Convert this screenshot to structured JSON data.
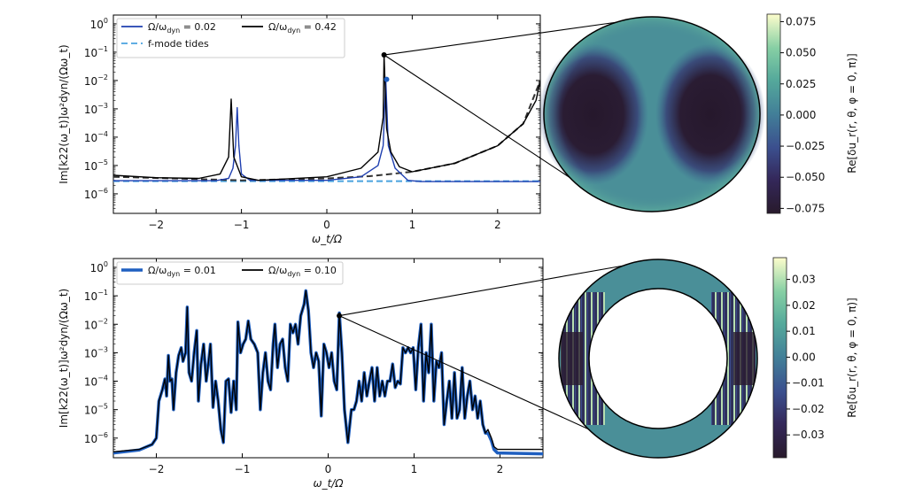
{
  "chart_data": [
    {
      "type": "line",
      "xlabel": "ω_t/Ω",
      "ylabel": "Im[k22(ω_t)]ω²dyn/(Ωω_t)",
      "xlim": [
        -2.5,
        2.5
      ],
      "ylim_log10": [
        -6.69,
        0.31
      ],
      "yscale": "log",
      "xticks": [
        "−2",
        "−1",
        "0",
        "1",
        "2"
      ],
      "xtick_values": [
        -2,
        -1,
        0,
        1,
        2
      ],
      "ytick_exponents": [
        "0",
        "−1",
        "−2",
        "−3",
        "−4",
        "−5",
        "−6"
      ],
      "legend_position": "top-left",
      "series": [
        {
          "name": "Ω/ω_dyn = 0.02",
          "legend_main": "Ω/ω",
          "legend_sub": "dyn",
          "legend_val": " = 0.02",
          "color": "#1f3fb0",
          "style": "solid",
          "points": [
            [
              -2.5,
              2.9e-06
            ],
            [
              -1.3,
              2.9e-06
            ],
            [
              -1.15,
              3.5e-06
            ],
            [
              -1.1,
              8e-06
            ],
            [
              -1.07,
              5e-05
            ],
            [
              -1.05,
              0.0011
            ],
            [
              -1.03,
              5e-05
            ],
            [
              -1.0,
              5e-06
            ],
            [
              -0.9,
              3e-06
            ],
            [
              0,
              3e-06
            ],
            [
              0.4,
              4e-06
            ],
            [
              0.6,
              1e-05
            ],
            [
              0.66,
              5e-05
            ],
            [
              0.69,
              0.011
            ],
            [
              0.72,
              5e-05
            ],
            [
              0.8,
              8e-06
            ],
            [
              0.95,
              3e-06
            ],
            [
              1.1,
              2.7e-06
            ],
            [
              2.5,
              2.7e-06
            ]
          ]
        },
        {
          "name": "Ω/ω_dyn = 0.42",
          "legend_main": "Ω/ω",
          "legend_sub": "dyn",
          "legend_val": " = 0.42",
          "color": "#000000",
          "style": "solid",
          "points": [
            [
              -2.5,
              4.5e-06
            ],
            [
              -2,
              3.7e-06
            ],
            [
              -1.5,
              3.5e-06
            ],
            [
              -1.25,
              5e-06
            ],
            [
              -1.15,
              2e-05
            ],
            [
              -1.12,
              0.0022
            ],
            [
              -1.09,
              2e-05
            ],
            [
              -1.0,
              4e-06
            ],
            [
              -0.8,
              3e-06
            ],
            [
              0,
              4e-06
            ],
            [
              0.4,
              8e-06
            ],
            [
              0.6,
              3e-05
            ],
            [
              0.66,
              0.0005
            ],
            [
              0.67,
              0.08
            ],
            [
              0.7,
              0.0002
            ],
            [
              0.75,
              3e-05
            ],
            [
              0.85,
              9e-06
            ],
            [
              1.0,
              6e-06
            ],
            [
              1.5,
              1.2e-05
            ],
            [
              2.0,
              5e-05
            ],
            [
              2.3,
              0.0003
            ],
            [
              2.45,
              0.002
            ],
            [
              2.5,
              0.01
            ]
          ]
        },
        {
          "name": "f-mode tides",
          "color": "#4aa3df",
          "style": "dashed",
          "points": [
            [
              -2.5,
              2.8e-06
            ],
            [
              2.5,
              2.8e-06
            ]
          ]
        },
        {
          "color": "#333333",
          "style": "dashed",
          "points": [
            [
              -2.5,
              4e-06
            ],
            [
              -1.5,
              3.3e-06
            ],
            [
              -1,
              3e-06
            ],
            [
              0,
              3.5e-06
            ],
            [
              0.5,
              4.2e-06
            ],
            [
              1,
              6e-06
            ],
            [
              1.5,
              1.2e-05
            ],
            [
              2,
              5e-05
            ],
            [
              2.3,
              0.0003
            ],
            [
              2.5,
              0.01
            ]
          ]
        }
      ],
      "markers": [
        {
          "x": 0.67,
          "y": 0.08,
          "color": "#000000"
        },
        {
          "x": 0.7,
          "y": 0.011,
          "color": "#1f5fc0"
        }
      ]
    },
    {
      "type": "line",
      "xlabel": "ω_t/Ω",
      "ylabel": "Im[k22(ω_t)]ω²dyn/(Ωω_t)",
      "xlim": [
        -2.5,
        2.5
      ],
      "ylim_log10": [
        -6.69,
        0.31
      ],
      "yscale": "log",
      "xticks": [
        "−2",
        "−1",
        "0",
        "1",
        "2"
      ],
      "xtick_values": [
        -2,
        -1,
        0,
        1,
        2
      ],
      "ytick_exponents": [
        "0",
        "−1",
        "−2",
        "−3",
        "−4",
        "−5",
        "−6"
      ],
      "legend_position": "top-left",
      "x": [
        -2.5,
        -2.2,
        -2.05,
        -2.0,
        -1.97,
        -1.93,
        -1.9,
        -1.88,
        -1.86,
        -1.84,
        -1.82,
        -1.8,
        -1.77,
        -1.74,
        -1.71,
        -1.69,
        -1.66,
        -1.64,
        -1.62,
        -1.59,
        -1.56,
        -1.53,
        -1.51,
        -1.48,
        -1.45,
        -1.42,
        -1.4,
        -1.37,
        -1.34,
        -1.31,
        -1.28,
        -1.25,
        -1.22,
        -1.19,
        -1.16,
        -1.13,
        -1.1,
        -1.07,
        -1.05,
        -1.02,
        -0.99,
        -0.96,
        -0.93,
        -0.9,
        -0.86,
        -0.82,
        -0.79,
        -0.76,
        -0.73,
        -0.7,
        -0.67,
        -0.64,
        -0.62,
        -0.59,
        -0.56,
        -0.53,
        -0.5,
        -0.47,
        -0.44,
        -0.41,
        -0.38,
        -0.35,
        -0.32,
        -0.28,
        -0.26,
        -0.23,
        -0.2,
        -0.17,
        -0.14,
        -0.11,
        -0.08,
        -0.05,
        -0.02,
        0.01,
        0.04,
        0.07,
        0.1,
        0.13,
        0.16,
        0.19,
        0.23,
        0.27,
        0.3,
        0.33,
        0.36,
        0.39,
        0.42,
        0.45,
        0.48,
        0.51,
        0.54,
        0.57,
        0.6,
        0.63,
        0.66,
        0.69,
        0.72,
        0.75,
        0.78,
        0.81,
        0.84,
        0.87,
        0.9,
        0.93,
        0.96,
        0.99,
        1.02,
        1.05,
        1.08,
        1.11,
        1.14,
        1.17,
        1.2,
        1.23,
        1.26,
        1.29,
        1.32,
        1.35,
        1.38,
        1.41,
        1.44,
        1.47,
        1.5,
        1.53,
        1.56,
        1.59,
        1.62,
        1.65,
        1.68,
        1.71,
        1.74,
        1.77,
        1.8,
        1.83,
        1.86,
        1.9,
        1.93,
        1.97,
        2.5
      ],
      "series": [
        {
          "name": "Ω/ω_dyn = 0.01",
          "legend_main": "Ω/ω",
          "legend_sub": "dyn",
          "legend_val": " = 0.01",
          "color": "#1f5fc0",
          "style": "solid-thick",
          "y": [
            3e-07,
            3.8e-07,
            6e-07,
            1e-06,
            2e-05,
            5e-05,
            0.00012,
            3e-05,
            0.0008,
            0.0001,
            0.00012,
            1e-05,
            0.0002,
            0.0008,
            0.0015,
            0.0005,
            0.001,
            0.04,
            0.0002,
            0.0001,
            0.001,
            0.006,
            2e-05,
            0.0004,
            0.002,
            0.0001,
            0.0003,
            0.002,
            1.2e-05,
            0.0001,
            2e-05,
            2e-06,
            7e-07,
            0.0001,
            0.00012,
            8e-06,
            0.0001,
            1e-05,
            0.012,
            0.001,
            0.002,
            0.003,
            0.013,
            0.003,
            0.002,
            0.001,
            1e-05,
            0.0002,
            0.001,
            0.0001,
            5e-05,
            0.002,
            0.01,
            0.0003,
            0.002,
            0.003,
            0.0003,
            0.0001,
            0.01,
            0.005,
            0.01,
            0.002,
            0.02,
            0.05,
            0.15,
            0.03,
            0.001,
            0.0003,
            0.001,
            0.0005,
            6e-06,
            0.002,
            0.001,
            0.0003,
            0.001,
            0.0001,
            5e-05,
            0.025,
            0.001,
            1e-05,
            7e-07,
            1e-05,
            1e-05,
            2e-05,
            0.0001,
            2e-05,
            0.0002,
            3e-05,
            0.0001,
            0.0003,
            2e-05,
            0.0003,
            3e-05,
            0.0001,
            3e-05,
            0.0001,
            0.0001,
            0.0004,
            6e-05,
            0.0001,
            8e-05,
            0.0015,
            0.001,
            0.0015,
            0.001,
            0.0015,
            5e-05,
            0.0015,
            0.01,
            2e-05,
            0.001,
            0.0002,
            0.01,
            2e-05,
            0.0005,
            0.0003,
            0.001,
            3e-06,
            2e-05,
            0.0001,
            5e-06,
            0.0002,
            5e-06,
            1e-05,
            0.0003,
            5e-06,
            3e-05,
            0.0001,
            1e-05,
            3e-05,
            5e-06,
            2e-05,
            3e-06,
            1.5e-06,
            1.5e-06,
            8e-07,
            4e-07,
            3e-07,
            2.8e-07
          ]
        },
        {
          "name": "Ω/ω_dyn = 0.10",
          "legend_main": "Ω/ω",
          "legend_sub": "dyn",
          "legend_val": " = 0.10",
          "color": "#000000",
          "style": "solid",
          "y": [
            3.3e-07,
            4e-07,
            6e-07,
            1e-06,
            2e-05,
            5e-05,
            0.00012,
            3e-05,
            0.0008,
            0.0001,
            0.00012,
            1e-05,
            0.0002,
            0.0008,
            0.0015,
            0.0005,
            0.001,
            0.04,
            0.0002,
            0.0001,
            0.001,
            0.006,
            2e-05,
            0.0004,
            0.002,
            0.0001,
            0.0003,
            0.002,
            1.2e-05,
            0.0001,
            2e-05,
            2e-06,
            7e-07,
            0.0001,
            0.00012,
            8e-06,
            0.0001,
            1e-05,
            0.012,
            0.001,
            0.002,
            0.003,
            0.013,
            0.003,
            0.002,
            0.001,
            1e-05,
            0.0002,
            0.001,
            0.0001,
            5e-05,
            0.002,
            0.01,
            0.0003,
            0.002,
            0.003,
            0.0003,
            0.0001,
            0.01,
            0.005,
            0.01,
            0.002,
            0.02,
            0.05,
            0.15,
            0.03,
            0.001,
            0.0003,
            0.001,
            0.0005,
            6e-06,
            0.002,
            0.001,
            0.0003,
            0.001,
            0.0001,
            5e-05,
            0.025,
            0.001,
            1e-05,
            7e-07,
            1e-05,
            1e-05,
            2e-05,
            0.0001,
            2e-05,
            0.0002,
            3e-05,
            0.0001,
            0.0003,
            2e-05,
            0.0003,
            3e-05,
            0.0001,
            3e-05,
            0.0001,
            0.0001,
            0.0004,
            6e-05,
            0.0001,
            8e-05,
            0.0015,
            0.001,
            0.0015,
            0.001,
            0.0015,
            5e-05,
            0.0015,
            0.01,
            2e-05,
            0.001,
            0.0002,
            0.01,
            2e-05,
            0.0005,
            0.0003,
            0.001,
            3e-06,
            2e-05,
            0.0001,
            5e-06,
            0.0002,
            5e-06,
            1e-05,
            0.0003,
            5e-06,
            3e-05,
            0.0001,
            1e-05,
            3e-05,
            5e-06,
            2e-05,
            3e-06,
            1.5e-06,
            2e-06,
            1e-06,
            5e-07,
            4e-07,
            4e-07
          ]
        }
      ],
      "markers": [
        {
          "x": 0.13,
          "y": 0.02,
          "color": "#000000"
        }
      ]
    }
  ],
  "colorbars": [
    {
      "label": "Re[δu_r(r, θ, φ = 0, π)]",
      "range": [
        -0.079,
        0.081
      ],
      "ticks": [
        "0.075",
        "0.050",
        "0.025",
        "0.000",
        "−0.025",
        "−0.050",
        "−0.075"
      ],
      "tick_values": [
        0.075,
        0.05,
        0.025,
        0,
        -0.025,
        -0.05,
        -0.075
      ]
    },
    {
      "label": "Re[δu_r(r, θ, φ = 0, π)]",
      "range": [
        -0.0388,
        0.0384
      ],
      "ticks": [
        "0.03",
        "0.02",
        "0.01",
        "0.00",
        "−0.01",
        "−0.02",
        "−0.03"
      ],
      "tick_values": [
        0.03,
        0.02,
        0.01,
        0,
        -0.01,
        -0.02,
        -0.03
      ]
    }
  ],
  "colormap": [
    "#281a2c",
    "#3b3f7e",
    "#3e6a9a",
    "#4a8c98",
    "#5fb19c",
    "#8fd0a6",
    "#fdfdcc"
  ]
}
